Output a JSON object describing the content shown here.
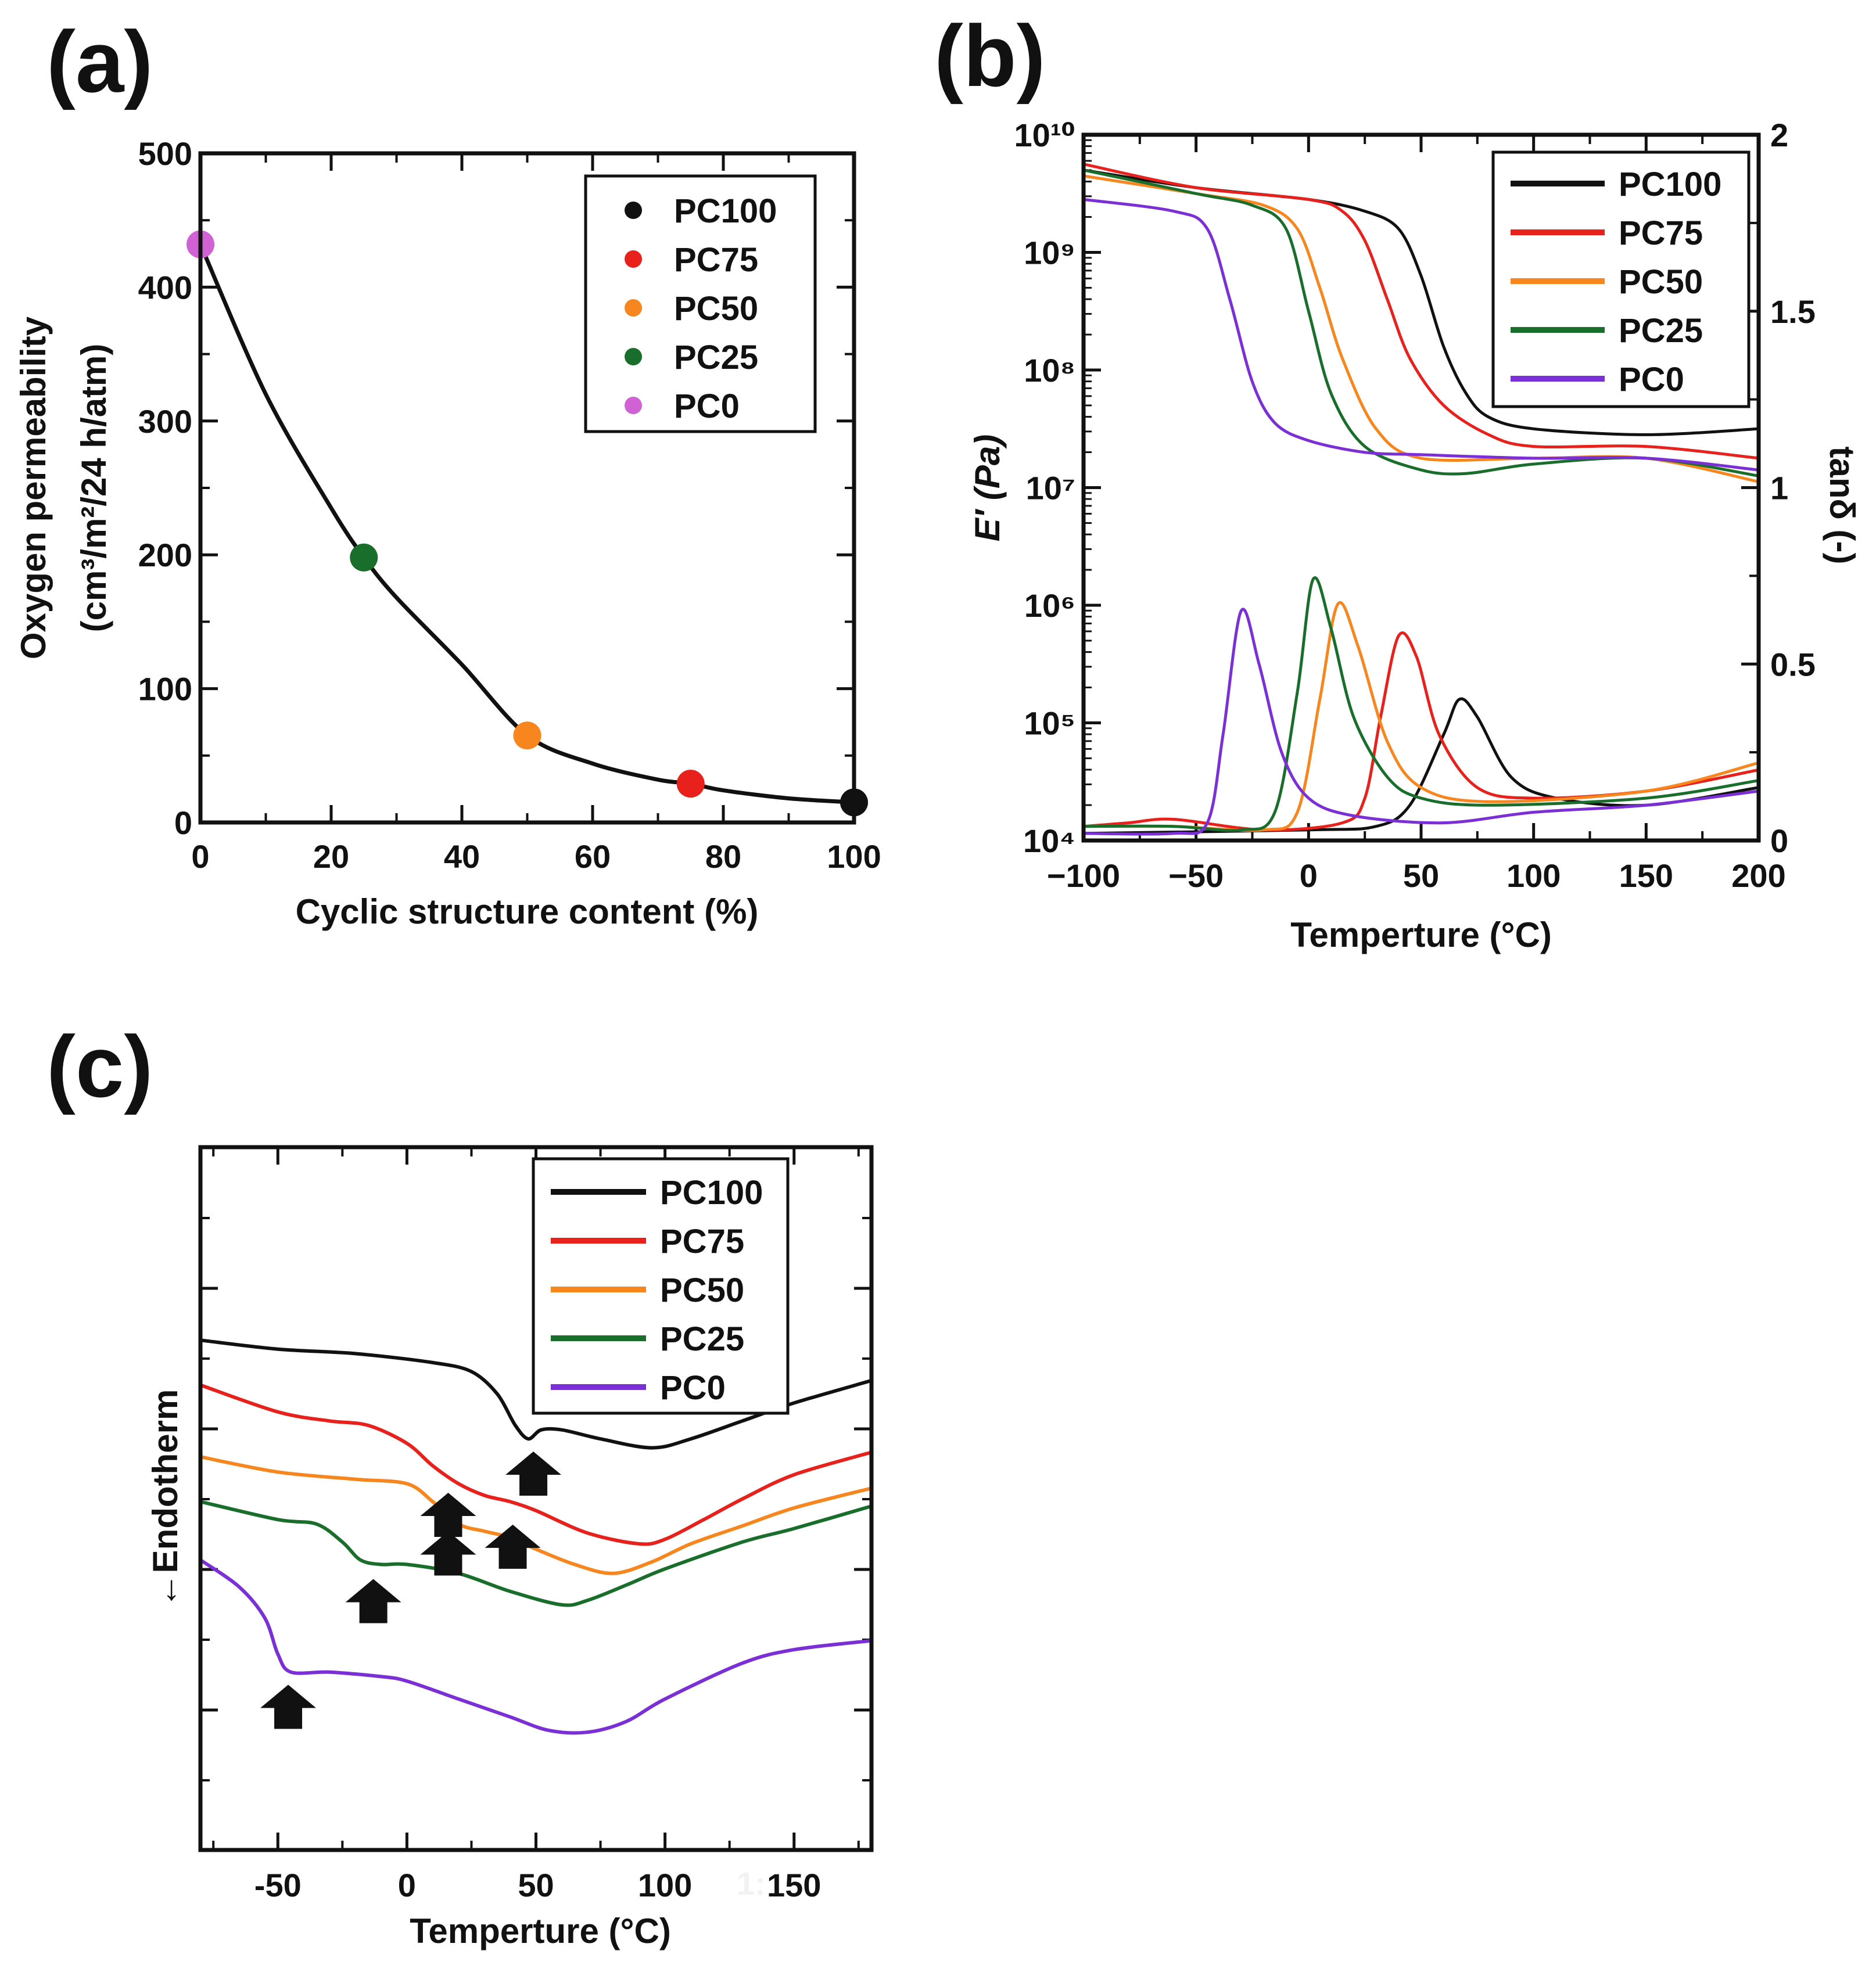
{
  "figure": {
    "panels": [
      {
        "letter": "(a)",
        "xlabel": "Cyclic structure content (%)",
        "ylabel_line1": "Oxygen permeability",
        "ylabel_line2": "(cm³/m²/24 h/atm)",
        "xticks": [
          "0",
          "20",
          "40",
          "60",
          "80",
          "100"
        ],
        "yticks": [
          "0",
          "100",
          "200",
          "300",
          "400",
          "500"
        ]
      },
      {
        "letter": "(b)",
        "xlabel": "Temperture (°C)",
        "ylabel": "E′ (Pa)",
        "ylabel_right": "tanδ (-)",
        "xticks": [
          "−100",
          "−50",
          "0",
          "50",
          "100",
          "150",
          "200"
        ],
        "yticks_left": [
          "10⁴",
          "10⁵",
          "10⁶",
          "10⁷",
          "10⁸",
          "10⁹",
          "10¹⁰"
        ],
        "yticks_right": [
          "0",
          "0.5",
          "1",
          "1.5",
          "2"
        ]
      },
      {
        "letter": "(c)",
        "xlabel": "Temperture (°C)",
        "ylabel": "←Endotherm",
        "xticks": [
          "-50",
          "0",
          "50",
          "100",
          "150"
        ],
        "stray_text": "1:"
      }
    ]
  },
  "chart_data": [
    {
      "type": "scatter",
      "title": "(a)",
      "xlabel": "Cyclic structure content (%)",
      "ylabel": "Oxygen permeability (cm³/m²/24 h/atm)",
      "xlim": [
        0,
        100
      ],
      "ylim": [
        0,
        500
      ],
      "series": [
        {
          "name": "PC100",
          "x": [
            100
          ],
          "y": [
            15
          ],
          "color": "#111111"
        },
        {
          "name": "PC75",
          "x": [
            75
          ],
          "y": [
            29
          ],
          "color": "#e8211c"
        },
        {
          "name": "PC50",
          "x": [
            50
          ],
          "y": [
            65
          ],
          "color": "#f7861f"
        },
        {
          "name": "PC25",
          "x": [
            25
          ],
          "y": [
            198
          ],
          "color": "#1a6e2b"
        },
        {
          "name": "PC0",
          "x": [
            0
          ],
          "y": [
            432
          ],
          "color": "#d062d6"
        }
      ],
      "fit_curve": {
        "x": [
          0,
          10,
          20,
          25,
          30,
          40,
          50,
          60,
          70,
          75,
          80,
          90,
          100
        ],
        "y": [
          432,
          320,
          235,
          198,
          168,
          118,
          65,
          44,
          32,
          29,
          24,
          18,
          15
        ]
      },
      "legend": "top-right"
    },
    {
      "type": "line",
      "title": "(b)",
      "xlabel": "Temperture (°C)",
      "ylabel": "E′ (Pa)",
      "ylabel_right": "tanδ (-)",
      "xlim": [
        -100,
        200
      ],
      "ylim_log10": [
        4,
        10
      ],
      "ylim_right": [
        0,
        2
      ],
      "storage_modulus_log10": [
        {
          "name": "PC100",
          "color": "#111111",
          "x": [
            -100,
            -50,
            0,
            25,
            40,
            50,
            60,
            70,
            80,
            100,
            150,
            200
          ],
          "y": [
            9.7,
            9.55,
            9.45,
            9.35,
            9.2,
            8.8,
            8.2,
            7.8,
            7.6,
            7.5,
            7.45,
            7.5
          ]
        },
        {
          "name": "PC75",
          "color": "#e8211c",
          "x": [
            -100,
            -50,
            0,
            15,
            25,
            35,
            45,
            60,
            80,
            100,
            150,
            200
          ],
          "y": [
            9.75,
            9.55,
            9.45,
            9.35,
            9.1,
            8.6,
            8.1,
            7.7,
            7.45,
            7.35,
            7.35,
            7.25
          ]
        },
        {
          "name": "PC50",
          "color": "#f7861f",
          "x": [
            -100,
            -50,
            -20,
            -5,
            5,
            15,
            30,
            50,
            100,
            150,
            200
          ],
          "y": [
            9.65,
            9.5,
            9.4,
            9.2,
            8.7,
            8.1,
            7.5,
            7.25,
            7.25,
            7.25,
            7.05
          ]
        },
        {
          "name": "PC25",
          "color": "#1a6e2b",
          "x": [
            -100,
            -50,
            -25,
            -10,
            0,
            10,
            25,
            50,
            70,
            100,
            150,
            200
          ],
          "y": [
            9.7,
            9.5,
            9.4,
            9.2,
            8.5,
            7.8,
            7.35,
            7.15,
            7.12,
            7.2,
            7.25,
            7.1
          ]
        },
        {
          "name": "PC0",
          "color": "#7b2fd6",
          "x": [
            -100,
            -60,
            -45,
            -35,
            -25,
            -15,
            0,
            25,
            50,
            100,
            150,
            200
          ],
          "y": [
            9.45,
            9.35,
            9.2,
            8.6,
            7.9,
            7.55,
            7.4,
            7.3,
            7.28,
            7.25,
            7.25,
            7.15
          ]
        }
      ],
      "tan_delta": [
        {
          "name": "PC100",
          "color": "#111111",
          "x": [
            -100,
            0,
            30,
            45,
            60,
            67,
            75,
            90,
            110,
            150,
            200
          ],
          "y": [
            0.02,
            0.03,
            0.04,
            0.1,
            0.3,
            0.4,
            0.35,
            0.18,
            0.12,
            0.1,
            0.15
          ]
        },
        {
          "name": "PC75",
          "color": "#e8211c",
          "x": [
            -100,
            -80,
            -60,
            -20,
            15,
            25,
            32,
            40,
            48,
            58,
            75,
            100,
            150,
            200
          ],
          "y": [
            0.04,
            0.05,
            0.06,
            0.03,
            0.05,
            0.12,
            0.35,
            0.58,
            0.52,
            0.3,
            0.15,
            0.12,
            0.14,
            0.2
          ]
        },
        {
          "name": "PC50",
          "color": "#f7861f",
          "x": [
            -100,
            -60,
            -20,
            -5,
            5,
            13,
            22,
            35,
            50,
            80,
            150,
            200
          ],
          "y": [
            0.04,
            0.04,
            0.03,
            0.08,
            0.4,
            0.67,
            0.55,
            0.28,
            0.15,
            0.11,
            0.14,
            0.22
          ]
        },
        {
          "name": "PC25",
          "color": "#1a6e2b",
          "x": [
            -100,
            -60,
            -30,
            -15,
            -5,
            2,
            10,
            20,
            35,
            50,
            80,
            150,
            200
          ],
          "y": [
            0.04,
            0.04,
            0.03,
            0.08,
            0.42,
            0.74,
            0.6,
            0.35,
            0.18,
            0.12,
            0.1,
            0.12,
            0.17
          ]
        },
        {
          "name": "PC0",
          "color": "#7b2fd6",
          "x": [
            -100,
            -60,
            -45,
            -38,
            -30,
            -22,
            -12,
            0,
            20,
            60,
            100,
            150,
            200
          ],
          "y": [
            0.02,
            0.02,
            0.05,
            0.3,
            0.65,
            0.5,
            0.25,
            0.12,
            0.07,
            0.05,
            0.08,
            0.1,
            0.14
          ]
        }
      ],
      "legend": "top-right"
    },
    {
      "type": "line",
      "title": "(c)",
      "xlabel": "Temperture (°C)",
      "ylabel": "←Endotherm",
      "xlim": [
        -80,
        180
      ],
      "y_units": "arbitrary (offset traces)",
      "series": [
        {
          "name": "PC100",
          "color": "#111111",
          "x": [
            -80,
            -50,
            -20,
            10,
            25,
            35,
            42,
            47,
            52,
            60,
            75,
            95,
            110,
            130,
            150,
            180
          ],
          "y": [
            6.55,
            6.45,
            6.4,
            6.3,
            6.2,
            5.95,
            5.6,
            5.45,
            5.55,
            5.55,
            5.45,
            5.35,
            5.45,
            5.65,
            5.85,
            6.1
          ]
        },
        {
          "name": "PC75",
          "color": "#e8211c",
          "x": [
            -80,
            -50,
            -30,
            -15,
            0,
            10,
            20,
            30,
            40,
            50,
            70,
            90,
            100,
            115,
            130,
            150,
            180
          ],
          "y": [
            6.05,
            5.75,
            5.65,
            5.6,
            5.4,
            5.15,
            4.95,
            4.82,
            4.75,
            4.65,
            4.4,
            4.28,
            4.33,
            4.55,
            4.78,
            5.05,
            5.3
          ]
        },
        {
          "name": "PC50",
          "color": "#f7861f",
          "x": [
            -80,
            -50,
            -20,
            0,
            10,
            20,
            30,
            40,
            50,
            65,
            80,
            95,
            110,
            130,
            150,
            180
          ],
          "y": [
            5.25,
            5.08,
            5.0,
            4.95,
            4.75,
            4.5,
            4.42,
            4.35,
            4.22,
            4.05,
            3.95,
            4.08,
            4.28,
            4.48,
            4.68,
            4.9
          ]
        },
        {
          "name": "PC25",
          "color": "#1a6e2b",
          "x": [
            -80,
            -50,
            -35,
            -25,
            -18,
            -10,
            0,
            20,
            40,
            60,
            70,
            85,
            100,
            130,
            150,
            180
          ],
          "y": [
            4.75,
            4.55,
            4.5,
            4.3,
            4.1,
            4.05,
            4.05,
            3.95,
            3.75,
            3.6,
            3.65,
            3.82,
            4.0,
            4.3,
            4.45,
            4.7
          ]
        },
        {
          "name": "PC0",
          "color": "#7b2fd6",
          "x": [
            -80,
            -65,
            -55,
            -50,
            -45,
            -30,
            -10,
            0,
            20,
            40,
            55,
            70,
            85,
            100,
            130,
            150,
            180
          ],
          "y": [
            4.1,
            3.8,
            3.45,
            3.05,
            2.85,
            2.85,
            2.8,
            2.75,
            2.55,
            2.35,
            2.2,
            2.18,
            2.3,
            2.55,
            2.95,
            3.1,
            3.2
          ]
        }
      ],
      "tg_arrows_x": [
        49,
        16,
        41,
        16,
        -13,
        -46
      ],
      "legend": "top-right"
    }
  ]
}
